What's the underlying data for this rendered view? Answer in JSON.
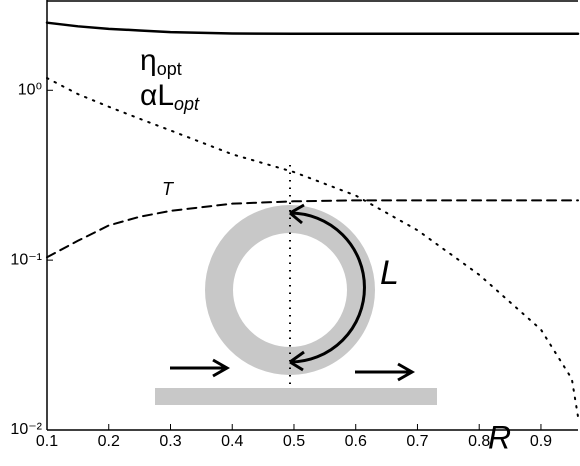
{
  "chart_data": {
    "type": "line",
    "x_label": "R",
    "x": [
      0.1,
      0.15,
      0.2,
      0.25,
      0.3,
      0.4,
      0.5,
      0.6,
      0.7,
      0.8,
      0.9,
      0.95,
      0.96
    ],
    "series": [
      {
        "name": "η",
        "subscript": "opt",
        "style": "solid",
        "color": "#000000",
        "values": [
          2.5,
          2.38,
          2.3,
          2.25,
          2.2,
          2.16,
          2.15,
          2.15,
          2.15,
          2.15,
          2.15,
          2.15,
          2.15
        ]
      },
      {
        "name": "αL",
        "subscript": "opt",
        "style": "dotted",
        "color": "#000000",
        "values": [
          1.18,
          0.95,
          0.8,
          0.68,
          0.58,
          0.42,
          0.33,
          0.24,
          0.15,
          0.082,
          0.039,
          0.02,
          0.012
        ]
      },
      {
        "name": "T",
        "style": "dashed",
        "color": "#000000",
        "values": [
          0.104,
          0.13,
          0.16,
          0.18,
          0.195,
          0.215,
          0.222,
          0.225,
          0.225,
          0.225,
          0.225,
          0.225,
          0.225
        ]
      }
    ],
    "xlim": [
      0.1,
      0.96
    ],
    "xticks": [
      0.1,
      0.2,
      0.3,
      0.4,
      0.5,
      0.6,
      0.7,
      0.8,
      0.9
    ],
    "ylim": [
      0.01,
      3.4
    ],
    "yticks": [
      {
        "value": 0.01,
        "label": "10⁻²"
      },
      {
        "value": 0.1,
        "label": "10⁻¹"
      },
      {
        "value": 1,
        "label": "10⁰"
      }
    ],
    "y_scale": "log",
    "inset_label": "L"
  }
}
